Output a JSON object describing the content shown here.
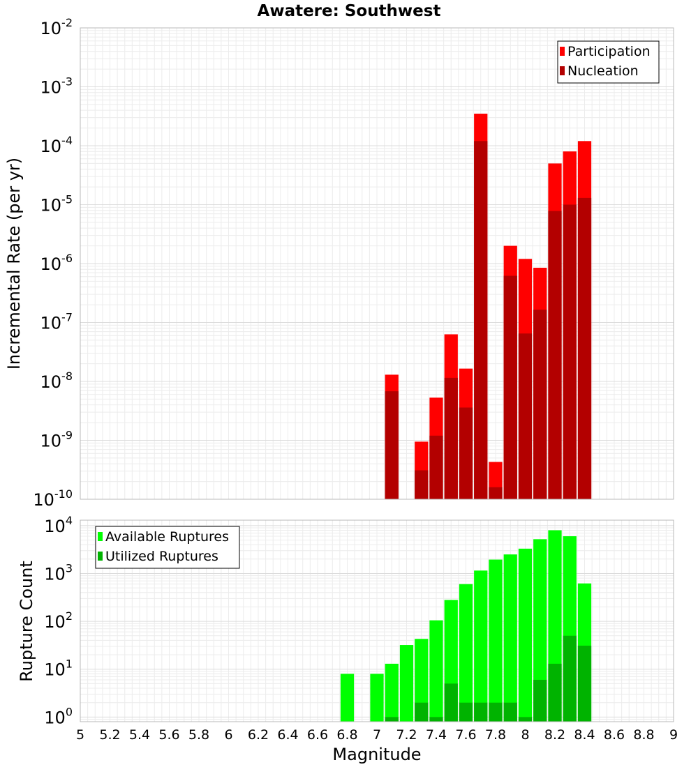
{
  "chart_data": [
    {
      "type": "bar",
      "title": "Awatere: Southwest",
      "xlabel": "",
      "ylabel": "Incremental Rate (per yr)",
      "y_scale": "log",
      "ylim": [
        1e-10,
        0.01
      ],
      "xlim": [
        5,
        9
      ],
      "y_ticks": [
        {
          "base": "10",
          "exp": "-10"
        },
        {
          "base": "10",
          "exp": "-9"
        },
        {
          "base": "10",
          "exp": "-8"
        },
        {
          "base": "10",
          "exp": "-7"
        },
        {
          "base": "10",
          "exp": "-6"
        },
        {
          "base": "10",
          "exp": "-5"
        },
        {
          "base": "10",
          "exp": "-4"
        },
        {
          "base": "10",
          "exp": "-3"
        },
        {
          "base": "10",
          "exp": "-2"
        }
      ],
      "grid": true,
      "legend_position": "top-right",
      "bar_width": 0.1,
      "x": [
        7.1,
        7.3,
        7.4,
        7.5,
        7.6,
        7.7,
        7.8,
        7.9,
        8.0,
        8.1,
        8.2,
        8.3,
        8.4
      ],
      "series": [
        {
          "name": "Participation",
          "color": "#ff0000",
          "values": [
            1.3e-08,
            9.5e-10,
            5.3e-09,
            6.3e-08,
            1.65e-08,
            0.00035,
            4.3e-10,
            2e-06,
            1.2e-06,
            8.5e-07,
            5e-05,
            8e-05,
            0.00012
          ]
        },
        {
          "name": "Nucleation",
          "color": "#b30000",
          "values": [
            6.8e-09,
            3.1e-10,
            1.2e-09,
            1.15e-08,
            3.6e-09,
            0.00012,
            1.6e-10,
            6.2e-07,
            6.5e-08,
            1.65e-07,
            7.8e-06,
            1e-05,
            1.3e-05
          ]
        }
      ]
    },
    {
      "type": "bar",
      "title": "",
      "xlabel": "Magnitude",
      "ylabel": "Rupture Count",
      "y_scale": "log",
      "ylim": [
        0.8,
        13000
      ],
      "xlim": [
        5,
        9
      ],
      "x_ticks": [
        "5",
        "5.2",
        "5.4",
        "5.6",
        "5.8",
        "6",
        "6.2",
        "6.4",
        "6.6",
        "6.8",
        "7",
        "7.2",
        "7.4",
        "7.6",
        "7.8",
        "8",
        "8.2",
        "8.4",
        "8.6",
        "8.8",
        "9"
      ],
      "y_ticks": [
        {
          "base": "10",
          "exp": "0"
        },
        {
          "base": "10",
          "exp": "1"
        },
        {
          "base": "10",
          "exp": "2"
        },
        {
          "base": "10",
          "exp": "3"
        },
        {
          "base": "10",
          "exp": "4"
        }
      ],
      "grid": true,
      "legend_position": "top-left",
      "bar_width": 0.1,
      "x": [
        6.8,
        7.0,
        7.1,
        7.2,
        7.3,
        7.4,
        7.5,
        7.6,
        7.7,
        7.8,
        7.9,
        8.0,
        8.1,
        8.2,
        8.3,
        8.4
      ],
      "series": [
        {
          "name": "Available Ruptures",
          "color": "#00ff00",
          "values": [
            8,
            8,
            13,
            32,
            43,
            105,
            280,
            600,
            1150,
            1950,
            2500,
            3300,
            5200,
            8000,
            6000,
            620
          ]
        },
        {
          "name": "Utilized Ruptures",
          "color": "#00b300",
          "values": [
            0,
            0,
            1,
            0,
            2,
            1,
            5,
            2,
            2,
            2,
            2,
            1,
            6,
            13,
            50,
            31
          ]
        }
      ]
    }
  ]
}
